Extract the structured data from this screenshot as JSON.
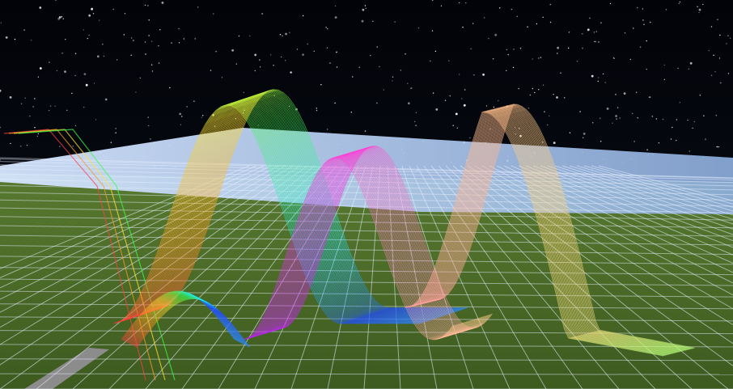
{
  "scene": {
    "description_type": "3d-voxel-world",
    "sky_color": "#05060a",
    "ground_color": "#4f6e2a",
    "grid_line_color": "#e8f0ff",
    "horizon_haze_color": "#bcd0f0",
    "path_color": "#8c8c8c",
    "ribbon_palette": [
      "#ff3b3b",
      "#ff9a1f",
      "#ffe62e",
      "#3bff4a",
      "#19e6ff",
      "#1f4bff",
      "#c21fff",
      "#ff3bd6",
      "#ff9fa0"
    ],
    "star_count": 420
  }
}
